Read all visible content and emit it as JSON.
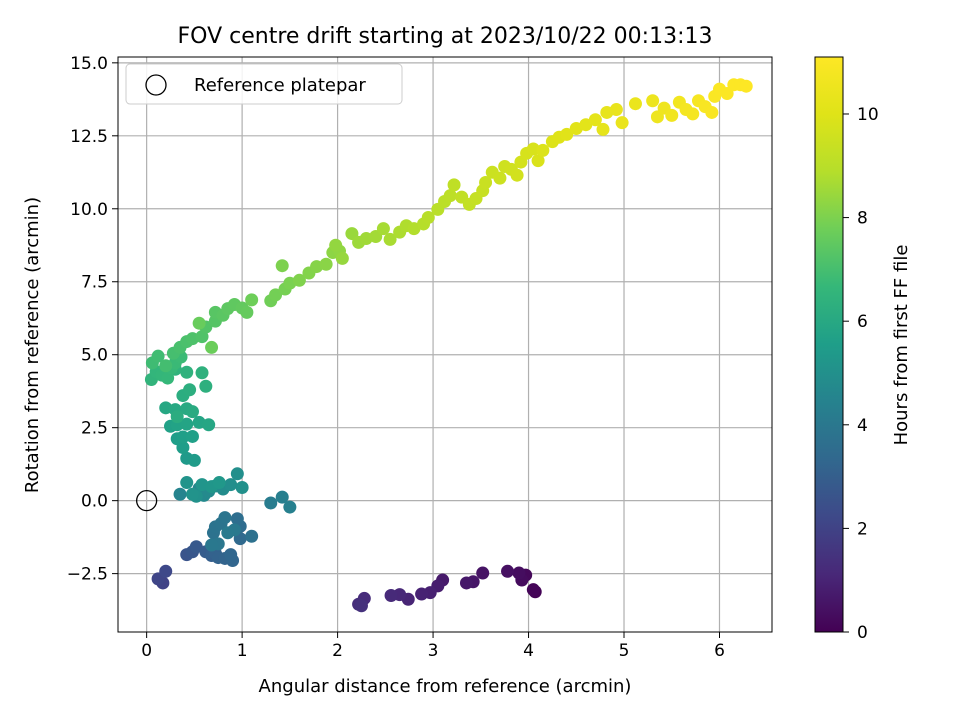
{
  "chart_data": {
    "type": "scatter",
    "title": "FOV centre drift starting at 2023/10/22 00:13:13",
    "xlabel": "Angular distance from reference (arcmin)",
    "ylabel": "Rotation from reference (arcmin)",
    "xlim": [
      -0.3,
      6.55
    ],
    "ylim": [
      -4.5,
      15.2
    ],
    "xticks": [
      0,
      1,
      2,
      3,
      4,
      5,
      6
    ],
    "xtick_labels": [
      "0",
      "1",
      "2",
      "3",
      "4",
      "5",
      "6"
    ],
    "yticks": [
      -2.5,
      0.0,
      2.5,
      5.0,
      7.5,
      10.0,
      12.5,
      15.0
    ],
    "ytick_labels": [
      "−2.5",
      "0.0",
      "2.5",
      "5.0",
      "7.5",
      "10.0",
      "12.5",
      "15.0"
    ],
    "grid": true,
    "legend": {
      "position": "top-left",
      "entries": [
        "Reference platepar"
      ]
    },
    "reference_point": {
      "x": 0,
      "y": 0
    },
    "colorbar": {
      "label": "Hours from first FF file",
      "range": [
        0,
        11.1
      ],
      "ticks": [
        0,
        2,
        4,
        6,
        8,
        10
      ],
      "tick_labels": [
        "0",
        "2",
        "4",
        "6",
        "8",
        "10"
      ],
      "colormap": "viridis"
    },
    "points": [
      [
        4.07,
        -3.12,
        0.05
      ],
      [
        4.05,
        -3.05,
        0.12
      ],
      [
        3.97,
        -2.55,
        0.2
      ],
      [
        3.93,
        -2.72,
        0.28
      ],
      [
        3.9,
        -2.48,
        0.35
      ],
      [
        3.78,
        -2.42,
        0.42
      ],
      [
        3.52,
        -2.48,
        0.5
      ],
      [
        3.42,
        -2.78,
        0.58
      ],
      [
        3.35,
        -2.82,
        0.65
      ],
      [
        3.1,
        -2.72,
        0.72
      ],
      [
        3.05,
        -2.92,
        0.8
      ],
      [
        2.97,
        -3.15,
        0.88
      ],
      [
        2.88,
        -3.2,
        0.95
      ],
      [
        2.74,
        -3.38,
        1.02
      ],
      [
        2.65,
        -3.22,
        1.1
      ],
      [
        2.56,
        -3.25,
        1.18
      ],
      [
        2.28,
        -3.35,
        1.25
      ],
      [
        2.22,
        -3.55,
        1.32
      ],
      [
        2.25,
        -3.6,
        1.4
      ],
      [
        0.17,
        -2.82,
        2.0
      ],
      [
        0.12,
        -2.68,
        2.1
      ],
      [
        0.2,
        -2.42,
        2.2
      ],
      [
        0.42,
        -1.85,
        2.6
      ],
      [
        0.48,
        -1.75,
        2.7
      ],
      [
        0.52,
        -1.58,
        2.8
      ],
      [
        0.62,
        -1.75,
        2.9
      ],
      [
        0.68,
        -1.88,
        3.0
      ],
      [
        0.72,
        -1.8,
        3.1
      ],
      [
        0.75,
        -1.95,
        3.15
      ],
      [
        0.82,
        -1.98,
        3.2
      ],
      [
        0.9,
        -2.05,
        3.25
      ],
      [
        0.88,
        -1.85,
        3.3
      ],
      [
        0.98,
        -1.3,
        3.4
      ],
      [
        0.98,
        -0.88,
        3.5
      ],
      [
        0.95,
        -0.62,
        3.6
      ],
      [
        1.1,
        -1.22,
        3.7
      ],
      [
        0.7,
        -1.1,
        3.75
      ],
      [
        0.72,
        -0.9,
        3.8
      ],
      [
        0.78,
        -0.78,
        3.85
      ],
      [
        0.82,
        -0.58,
        3.9
      ],
      [
        0.75,
        -1.48,
        3.95
      ],
      [
        0.68,
        -1.52,
        4.0
      ],
      [
        0.92,
        -1.0,
        4.05
      ],
      [
        0.85,
        -1.1,
        4.1
      ],
      [
        1.3,
        -0.08,
        4.2
      ],
      [
        1.42,
        0.12,
        4.3
      ],
      [
        1.5,
        -0.22,
        4.35
      ],
      [
        0.35,
        0.22,
        4.5
      ],
      [
        0.55,
        0.42,
        4.6
      ],
      [
        0.6,
        0.18,
        4.7
      ],
      [
        0.65,
        0.32,
        4.75
      ],
      [
        0.72,
        0.5,
        4.8
      ],
      [
        0.8,
        0.4,
        4.85
      ],
      [
        0.88,
        0.55,
        4.9
      ],
      [
        0.95,
        0.92,
        4.95
      ],
      [
        1.0,
        0.45,
        5.0
      ],
      [
        0.52,
        0.15,
        5.05
      ],
      [
        0.48,
        0.22,
        5.1
      ],
      [
        0.42,
        0.62,
        5.15
      ],
      [
        0.58,
        0.55,
        5.2
      ],
      [
        0.68,
        0.48,
        5.25
      ],
      [
        0.76,
        0.62,
        5.3
      ],
      [
        0.42,
        1.45,
        5.4
      ],
      [
        0.5,
        1.38,
        5.45
      ],
      [
        0.38,
        1.82,
        5.5
      ],
      [
        0.32,
        2.12,
        5.55
      ],
      [
        0.38,
        2.18,
        5.6
      ],
      [
        0.48,
        2.2,
        5.65
      ],
      [
        0.25,
        2.55,
        5.7
      ],
      [
        0.32,
        2.6,
        5.75
      ],
      [
        0.42,
        2.62,
        5.8
      ],
      [
        0.55,
        2.68,
        5.85
      ],
      [
        0.65,
        2.6,
        5.9
      ],
      [
        0.2,
        3.18,
        5.95
      ],
      [
        0.3,
        3.12,
        6.0
      ],
      [
        0.42,
        3.15,
        6.05
      ],
      [
        0.48,
        3.05,
        6.1
      ],
      [
        0.32,
        2.88,
        6.15
      ],
      [
        0.38,
        3.6,
        6.2
      ],
      [
        0.45,
        3.8,
        6.25
      ],
      [
        0.62,
        3.92,
        6.3
      ],
      [
        0.58,
        4.38,
        6.35
      ],
      [
        0.42,
        4.4,
        6.4
      ],
      [
        0.3,
        4.5,
        6.45
      ],
      [
        0.05,
        4.15,
        6.5
      ],
      [
        0.1,
        4.42,
        6.55
      ],
      [
        0.16,
        4.3,
        6.6
      ],
      [
        0.22,
        4.2,
        6.65
      ],
      [
        0.26,
        4.55,
        6.7
      ],
      [
        0.3,
        4.72,
        6.75
      ],
      [
        0.36,
        4.92,
        6.8
      ],
      [
        0.06,
        4.72,
        6.85
      ],
      [
        0.12,
        4.95,
        6.9
      ],
      [
        0.2,
        4.62,
        6.95
      ],
      [
        0.28,
        5.05,
        7.0
      ],
      [
        0.35,
        5.25,
        7.05
      ],
      [
        0.42,
        5.45,
        7.1
      ],
      [
        0.48,
        5.55,
        7.15
      ],
      [
        0.58,
        5.62,
        7.2
      ],
      [
        0.62,
        5.95,
        7.25
      ],
      [
        0.72,
        6.15,
        7.3
      ],
      [
        0.72,
        6.45,
        7.35
      ],
      [
        0.8,
        6.35,
        7.4
      ],
      [
        0.85,
        6.58,
        7.45
      ],
      [
        0.92,
        6.72,
        7.5
      ],
      [
        1.0,
        6.6,
        7.55
      ],
      [
        1.05,
        6.45,
        7.6
      ],
      [
        0.55,
        6.08,
        7.65
      ],
      [
        0.68,
        5.25,
        7.7
      ],
      [
        1.1,
        6.88,
        7.75
      ],
      [
        1.3,
        6.85,
        7.8
      ],
      [
        1.35,
        7.05,
        7.85
      ],
      [
        1.45,
        7.25,
        7.9
      ],
      [
        1.5,
        7.45,
        7.95
      ],
      [
        1.42,
        8.05,
        8.0
      ],
      [
        1.6,
        7.55,
        8.05
      ],
      [
        1.7,
        7.8,
        8.1
      ],
      [
        1.78,
        8.02,
        8.15
      ],
      [
        1.88,
        8.1,
        8.2
      ],
      [
        1.95,
        8.5,
        8.25
      ],
      [
        2.02,
        8.55,
        8.3
      ],
      [
        1.98,
        8.75,
        8.35
      ],
      [
        2.05,
        8.3,
        8.4
      ],
      [
        2.15,
        9.15,
        8.45
      ],
      [
        2.22,
        8.85,
        8.5
      ],
      [
        2.3,
        8.98,
        8.55
      ],
      [
        2.4,
        9.05,
        8.6
      ],
      [
        2.48,
        9.32,
        8.65
      ],
      [
        2.55,
        8.95,
        8.7
      ],
      [
        2.65,
        9.2,
        8.75
      ],
      [
        2.72,
        9.42,
        8.8
      ],
      [
        2.8,
        9.32,
        8.85
      ],
      [
        2.9,
        9.48,
        8.9
      ],
      [
        2.95,
        9.7,
        8.95
      ],
      [
        3.05,
        9.98,
        9.0
      ],
      [
        3.12,
        10.25,
        9.05
      ],
      [
        3.18,
        10.45,
        9.1
      ],
      [
        3.22,
        10.82,
        9.15
      ],
      [
        3.3,
        10.4,
        9.2
      ],
      [
        3.38,
        10.15,
        9.25
      ],
      [
        3.45,
        10.35,
        9.3
      ],
      [
        3.52,
        10.62,
        9.35
      ],
      [
        3.55,
        10.9,
        9.4
      ],
      [
        3.62,
        11.25,
        9.45
      ],
      [
        3.7,
        11.05,
        9.5
      ],
      [
        3.75,
        11.45,
        9.55
      ],
      [
        3.82,
        11.35,
        9.6
      ],
      [
        3.88,
        11.15,
        9.65
      ],
      [
        3.92,
        11.6,
        9.7
      ],
      [
        3.98,
        11.9,
        9.75
      ],
      [
        4.05,
        12.05,
        9.8
      ],
      [
        4.1,
        11.65,
        9.85
      ],
      [
        4.15,
        12.0,
        9.9
      ],
      [
        4.25,
        12.3,
        9.95
      ],
      [
        4.32,
        12.45,
        10.0
      ],
      [
        4.4,
        12.55,
        10.05
      ],
      [
        4.5,
        12.75,
        10.1
      ],
      [
        4.6,
        12.88,
        10.15
      ],
      [
        4.7,
        13.05,
        10.2
      ],
      [
        4.78,
        12.72,
        10.25
      ],
      [
        4.82,
        13.3,
        10.3
      ],
      [
        4.92,
        13.4,
        10.35
      ],
      [
        4.98,
        12.95,
        10.4
      ],
      [
        5.12,
        13.6,
        10.45
      ],
      [
        5.3,
        13.7,
        10.5
      ],
      [
        5.35,
        13.15,
        10.55
      ],
      [
        5.42,
        13.45,
        10.6
      ],
      [
        5.5,
        13.2,
        10.65
      ],
      [
        5.58,
        13.65,
        10.7
      ],
      [
        5.65,
        13.4,
        10.75
      ],
      [
        5.72,
        13.25,
        10.8
      ],
      [
        5.78,
        13.7,
        10.85
      ],
      [
        5.85,
        13.5,
        10.9
      ],
      [
        5.92,
        13.3,
        10.95
      ],
      [
        5.95,
        13.85,
        11.0
      ],
      [
        6.0,
        14.1,
        11.02
      ],
      [
        6.08,
        13.95,
        11.04
      ],
      [
        6.15,
        14.25,
        11.06
      ],
      [
        6.22,
        14.25,
        11.08
      ],
      [
        6.28,
        14.2,
        11.1
      ]
    ]
  }
}
